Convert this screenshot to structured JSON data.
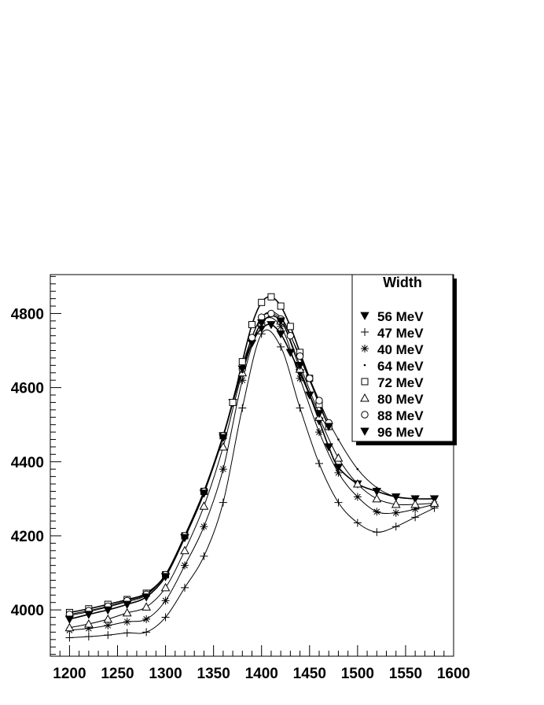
{
  "chart_data": {
    "type": "line",
    "title": "",
    "xlabel": "",
    "ylabel": "",
    "xlim": [
      1180,
      1600
    ],
    "ylim": [
      3875,
      4905
    ],
    "x_ticks": [
      1200,
      1250,
      1300,
      1350,
      1400,
      1450,
      1500,
      1550,
      1600
    ],
    "y_ticks": [
      4000,
      4200,
      4400,
      4600,
      4800
    ],
    "grid": false,
    "legend": {
      "title": "Width",
      "placement": "top-right"
    },
    "series": [
      {
        "name": "56 MeV",
        "marker": "triangle-down-filled",
        "x": [
          1200,
          1220,
          1240,
          1260,
          1280,
          1300,
          1320,
          1340,
          1360,
          1370,
          1380,
          1390,
          1400,
          1410,
          1420,
          1430,
          1440,
          1450,
          1460,
          1470,
          1480,
          1500,
          1520,
          1540,
          1560,
          1580
        ],
        "y": [
          3975,
          3988,
          4000,
          4015,
          4035,
          4090,
          4195,
          4315,
          4470,
          4560,
          4650,
          4720,
          4760,
          4770,
          4745,
          4695,
          4640,
          4580,
          4510,
          4440,
          4385,
          4340,
          4320,
          4305,
          4300,
          4300
        ]
      },
      {
        "name": "47 MeV",
        "marker": "plus",
        "x": [
          1200,
          1220,
          1240,
          1260,
          1280,
          1300,
          1320,
          1340,
          1360,
          1380,
          1400,
          1420,
          1440,
          1460,
          1480,
          1500,
          1520,
          1540,
          1560,
          1580
        ],
        "y": [
          3925,
          3928,
          3932,
          3938,
          3940,
          3980,
          4060,
          4145,
          4290,
          4545,
          4745,
          4710,
          4545,
          4395,
          4290,
          4235,
          4210,
          4225,
          4250,
          4275
        ]
      },
      {
        "name": "40 MeV",
        "marker": "asterisk",
        "x": [
          1200,
          1220,
          1240,
          1260,
          1280,
          1300,
          1320,
          1340,
          1360,
          1380,
          1400,
          1420,
          1440,
          1460,
          1480,
          1500,
          1520,
          1540,
          1560,
          1580
        ],
        "y": [
          3945,
          3950,
          3958,
          3968,
          3975,
          4025,
          4120,
          4225,
          4380,
          4620,
          4775,
          4765,
          4625,
          4480,
          4370,
          4305,
          4265,
          4262,
          4272,
          4285
        ]
      },
      {
        "name": "64 MeV",
        "marker": "dot",
        "x": [
          1200,
          1220,
          1240,
          1260,
          1280,
          1300,
          1320,
          1340,
          1360,
          1380,
          1400,
          1420,
          1440,
          1460,
          1480,
          1500,
          1520,
          1540,
          1560,
          1580
        ],
        "y": [
          3985,
          3995,
          4008,
          4022,
          4040,
          4095,
          4200,
          4320,
          4470,
          4660,
          4790,
          4790,
          4680,
          4560,
          4460,
          4380,
          4330,
          4305,
          4300,
          4300
        ]
      },
      {
        "name": "72 MeV",
        "marker": "square-open",
        "x": [
          1200,
          1220,
          1240,
          1260,
          1280,
          1300,
          1320,
          1340,
          1360,
          1370,
          1380,
          1390,
          1400,
          1410,
          1420,
          1430,
          1440,
          1450,
          1460,
          1470
        ],
        "y": [
          3993,
          4003,
          4015,
          4028,
          4045,
          4095,
          4200,
          4320,
          4470,
          4560,
          4670,
          4770,
          4830,
          4845,
          4820,
          4765,
          4695,
          4625,
          4555,
          4495
        ]
      },
      {
        "name": "80 MeV",
        "marker": "triangle-up-open",
        "x": [
          1200,
          1220,
          1240,
          1260,
          1280,
          1300,
          1320,
          1340,
          1360,
          1380,
          1400,
          1420,
          1440,
          1460,
          1480,
          1500,
          1520,
          1540,
          1560,
          1580
        ],
        "y": [
          3952,
          3962,
          3975,
          3992,
          4008,
          4060,
          4160,
          4280,
          4440,
          4640,
          4775,
          4780,
          4650,
          4520,
          4410,
          4340,
          4300,
          4285,
          4285,
          4288
        ]
      },
      {
        "name": "88 MeV",
        "marker": "circle-open",
        "x": [
          1200,
          1220,
          1240,
          1260,
          1280,
          1300,
          1320,
          1340,
          1360,
          1380,
          1390,
          1400,
          1410,
          1420,
          1430,
          1440,
          1450,
          1460,
          1470
        ],
        "y": [
          3988,
          3998,
          4010,
          4025,
          4042,
          4095,
          4200,
          4320,
          4470,
          4650,
          4735,
          4790,
          4800,
          4785,
          4740,
          4685,
          4625,
          4565,
          4505
        ]
      },
      {
        "name": "96 MeV",
        "marker": "triangle-down-filled",
        "x": [
          1200,
          1220,
          1240,
          1260,
          1280,
          1300,
          1320,
          1340,
          1360,
          1380,
          1400,
          1420,
          1440,
          1460,
          1470
        ],
        "y": [
          3975,
          3988,
          4000,
          4015,
          4035,
          4090,
          4195,
          4315,
          4465,
          4650,
          4775,
          4780,
          4660,
          4530,
          4495
        ]
      }
    ]
  }
}
